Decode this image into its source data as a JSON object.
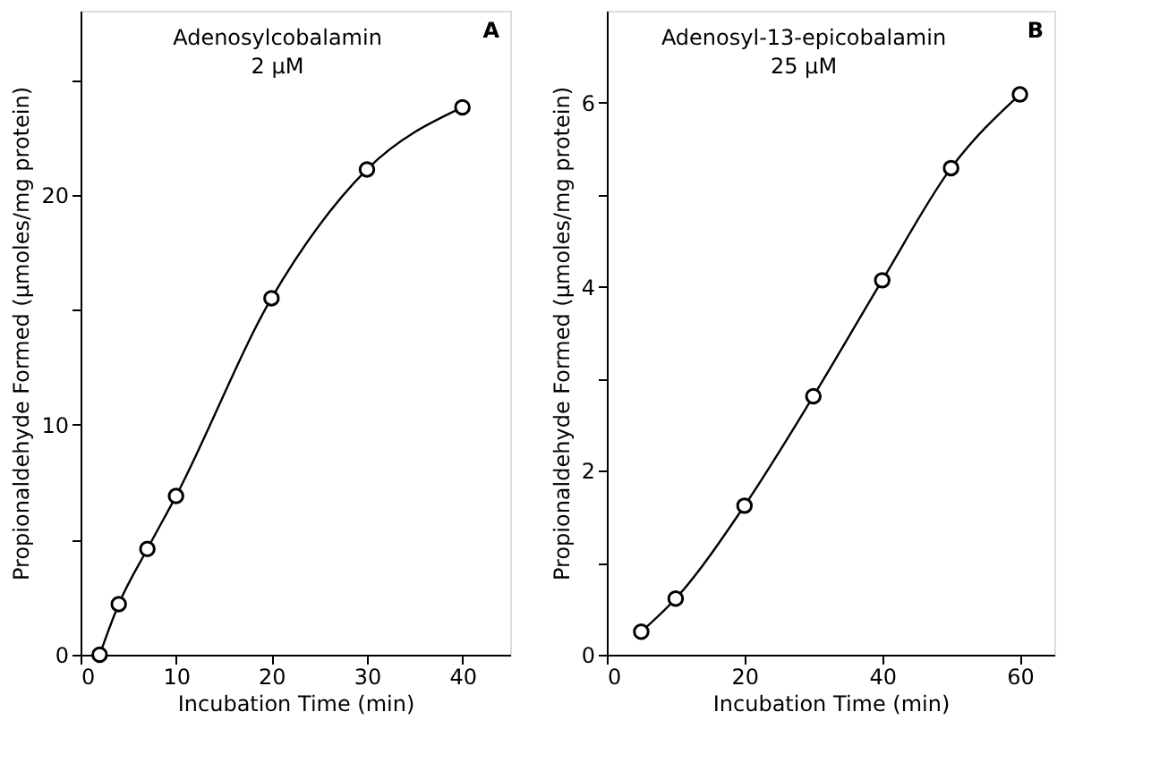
{
  "chart_data": [
    {
      "type": "line",
      "xlabel": "Incubation Time (min)",
      "ylabel": "Propionaldehyde Formed (μmoles/mg protein)",
      "annotations": [
        "Adenosylcobalamin\n2 μM",
        "A"
      ],
      "x": [
        2,
        4,
        7,
        10,
        20,
        30,
        40
      ],
      "series": [
        {
          "color": "#000000",
          "values": [
            0,
            2.2,
            4.6,
            6.9,
            15.5,
            21.1,
            23.8
          ]
        }
      ],
      "xlim": [
        0,
        45
      ],
      "xticks": [
        0,
        10,
        20,
        30,
        40
      ],
      "ylim": [
        0,
        28
      ],
      "yticks": [
        0,
        {
          "value": 5,
          "label": null
        },
        10,
        {
          "value": 15,
          "label": null
        },
        20,
        {
          "value": 25,
          "label": null
        }
      ],
      "marker": "circle",
      "line_style": "solid",
      "grid": false
    },
    {
      "type": "line",
      "xlabel": "Incubation Time (min)",
      "ylabel": "Propionaldehyde Formed (μmoles/mg protein)",
      "annotations": [
        "Adenosyl-13-epicobalamin\n25 μM",
        "B"
      ],
      "x": [
        5,
        10,
        20,
        30,
        40,
        50,
        60
      ],
      "series": [
        {
          "color": "#000000",
          "values": [
            0.25,
            0.61,
            1.62,
            2.81,
            4.07,
            5.29,
            6.09
          ]
        }
      ],
      "xlim": [
        0,
        65
      ],
      "xticks": [
        0,
        20,
        40,
        60
      ],
      "ylim": [
        0,
        7
      ],
      "yticks": [
        0,
        {
          "value": 1,
          "label": null
        },
        2,
        {
          "value": 3,
          "label": null
        },
        4,
        {
          "value": 5,
          "label": null
        },
        6
      ],
      "marker": "circle",
      "line_style": "solid",
      "grid": false
    }
  ]
}
